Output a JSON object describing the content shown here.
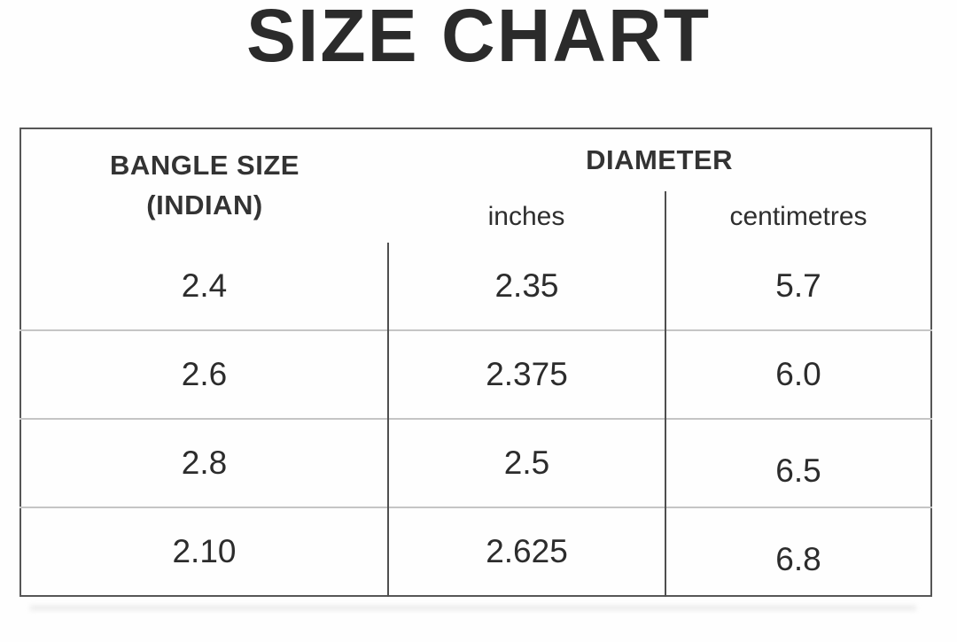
{
  "chart_data": {
    "type": "table",
    "title": "SIZE CHART",
    "header": {
      "col1_line1": "BANGLE SIZE",
      "col1_line2": "(INDIAN)",
      "group": "DIAMETER",
      "subs": [
        "inches",
        "centimetres"
      ]
    },
    "columns": [
      "BANGLE SIZE (INDIAN)",
      "DIAMETER inches",
      "DIAMETER centimetres"
    ],
    "rows": [
      [
        "2.4",
        "2.35",
        "5.7"
      ],
      [
        "2.6",
        "2.375",
        "6.0"
      ],
      [
        "2.8",
        "2.5",
        "6.5"
      ],
      [
        "2.10",
        "2.625",
        "6.8"
      ]
    ],
    "layout": {
      "grid": "on",
      "text_color": "#2e2e2e",
      "border_color_dark": "#4f4f4f",
      "border_color_light": "#c5c5c5",
      "header_rule_color": "#8a8a8a",
      "background": "#fefefe"
    }
  }
}
